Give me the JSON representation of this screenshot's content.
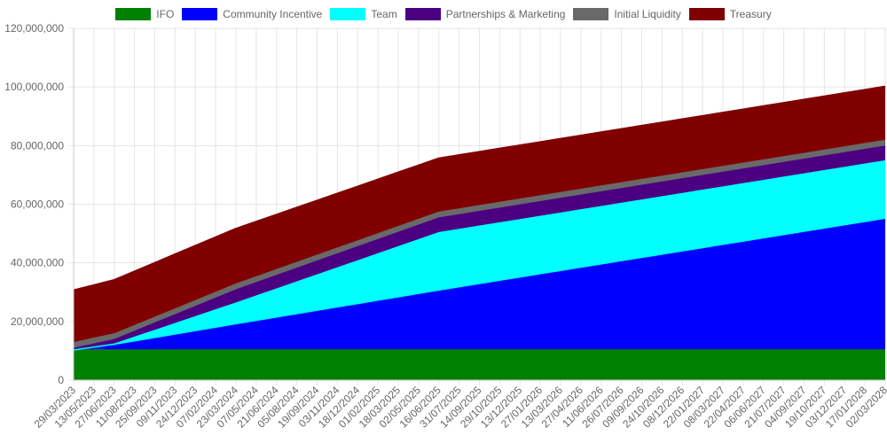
{
  "chart_data": {
    "type": "area",
    "stacked": true,
    "legend_position": "top",
    "grid": true,
    "xlabel": "",
    "ylabel": "",
    "ylim": [
      0,
      120000000
    ],
    "y_ticks": [
      "0",
      "20,000,000",
      "40,000,000",
      "60,000,000",
      "80,000,000",
      "100,000,000",
      "120,000,000"
    ],
    "y_tick_values": [
      0,
      20000000,
      40000000,
      60000000,
      80000000,
      100000000,
      120000000
    ],
    "categories": [
      "29/03/2023",
      "13/05/2023",
      "27/06/2023",
      "11/08/2023",
      "25/09/2023",
      "09/11/2023",
      "24/12/2023",
      "07/02/2024",
      "23/03/2024",
      "07/05/2024",
      "21/06/2024",
      "05/08/2024",
      "19/09/2024",
      "03/11/2024",
      "18/12/2024",
      "01/02/2025",
      "18/03/2025",
      "02/05/2025",
      "16/06/2025",
      "31/07/2025",
      "14/09/2025",
      "29/10/2025",
      "13/12/2025",
      "27/01/2026",
      "13/03/2026",
      "27/04/2026",
      "11/06/2026",
      "26/07/2026",
      "09/09/2026",
      "24/10/2026",
      "08/12/2026",
      "22/01/2027",
      "08/03/2027",
      "22/04/2027",
      "06/06/2027",
      "21/07/2027",
      "04/09/2027",
      "19/10/2027",
      "03/12/2027",
      "17/01/2028",
      "02/03/2028"
    ],
    "series": [
      {
        "name": "IFO",
        "color": "#008000",
        "key_x": [
          0,
          2,
          8,
          18,
          40
        ],
        "key_y": [
          10500000,
          10500000,
          10500000,
          10500000,
          10500000
        ]
      },
      {
        "name": "Community Incentive",
        "color": "#0000ff",
        "key_x": [
          0,
          2,
          8,
          18,
          40
        ],
        "key_y": [
          0,
          1500000,
          8500000,
          20000000,
          44500000
        ]
      },
      {
        "name": "Team",
        "color": "#00ffff",
        "key_x": [
          0,
          2,
          8,
          18,
          40
        ],
        "key_y": [
          0,
          500000,
          7500000,
          20000000,
          20000000
        ]
      },
      {
        "name": "Partnerships & Marketing",
        "color": "#4b0082",
        "key_x": [
          0,
          2,
          8,
          18,
          40
        ],
        "key_y": [
          500000,
          1500000,
          4500000,
          5000000,
          5000000
        ]
      },
      {
        "name": "Initial Liquidity",
        "color": "#696969",
        "key_x": [
          0,
          2,
          8,
          18,
          40
        ],
        "key_y": [
          2000000,
          2000000,
          2000000,
          2000000,
          2000000
        ]
      },
      {
        "name": "Treasury",
        "color": "#800000",
        "key_x": [
          0,
          2,
          8,
          18,
          40
        ],
        "key_y": [
          17500000,
          18000000,
          18500000,
          18000000,
          18000000
        ]
      }
    ]
  }
}
